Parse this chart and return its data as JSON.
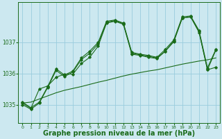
{
  "background_color": "#cce8f0",
  "grid_color": "#99ccdd",
  "line_color": "#1a6b1a",
  "marker_color": "#1a6b1a",
  "xlabel": "Graphe pression niveau de la mer (hPa)",
  "xlabel_fontsize": 7,
  "ylabel_ticks": [
    1035,
    1036,
    1037
  ],
  "xtick_labels": [
    "0",
    "1",
    "2",
    "3",
    "4",
    "5",
    "6",
    "7",
    "8",
    "9",
    "10",
    "11",
    "12",
    "13",
    "14",
    "15",
    "16",
    "17",
    "18",
    "19",
    "20",
    "21",
    "22",
    "23"
  ],
  "ylim": [
    1034.4,
    1038.3
  ],
  "xlim": [
    -0.5,
    23.5
  ],
  "series1_y": [
    1035.0,
    1034.85,
    1035.05,
    1035.55,
    1036.1,
    1035.9,
    1036.05,
    1036.45,
    1036.65,
    1036.95,
    1037.65,
    1037.7,
    1037.6,
    1036.65,
    1036.6,
    1036.55,
    1036.5,
    1036.72,
    1037.05,
    1037.78,
    1037.82,
    1037.35,
    1036.12,
    1036.75
  ],
  "series2_y": [
    1035.05,
    1034.88,
    1035.5,
    1035.6,
    1035.88,
    1035.98,
    1035.98,
    1036.32,
    1036.52,
    1036.88,
    1037.62,
    1037.68,
    1037.58,
    1036.62,
    1036.58,
    1036.52,
    1036.48,
    1036.72,
    1037.02,
    1037.78,
    1037.82,
    1037.32,
    1036.12,
    1036.2
  ],
  "series3_y": [
    1035.08,
    1034.9,
    1035.08,
    1035.58,
    1036.15,
    1035.95,
    1036.08,
    1036.5,
    1036.72,
    1037.0,
    1037.68,
    1037.72,
    1037.62,
    1036.68,
    1036.62,
    1036.58,
    1036.52,
    1036.78,
    1037.08,
    1037.82,
    1037.85,
    1037.38,
    1036.18,
    1036.78
  ],
  "series_smooth_y": [
    1035.05,
    1035.08,
    1035.18,
    1035.28,
    1035.38,
    1035.46,
    1035.52,
    1035.58,
    1035.65,
    1035.72,
    1035.78,
    1035.85,
    1035.92,
    1035.98,
    1036.03,
    1036.08,
    1036.12,
    1036.18,
    1036.24,
    1036.3,
    1036.35,
    1036.4,
    1036.44,
    1036.5
  ]
}
